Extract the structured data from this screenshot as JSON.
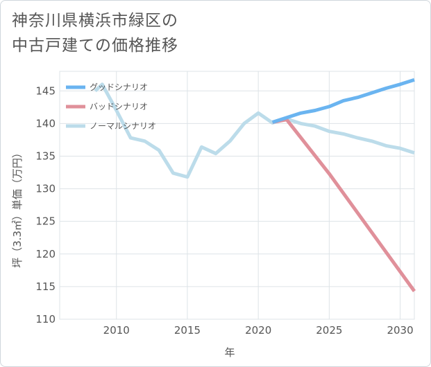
{
  "title": {
    "line1": "神奈川県横浜市緑区の",
    "line2": "中古戸建ての価格推移"
  },
  "chart_data": {
    "type": "line",
    "xlabel": "年",
    "ylabel": "坪（3.3㎡）単価（万円）",
    "xlim": [
      2006,
      2031
    ],
    "ylim": [
      110,
      148
    ],
    "x_ticks": [
      2010,
      2015,
      2020,
      2025,
      2030
    ],
    "y_ticks": [
      110,
      115,
      120,
      125,
      130,
      135,
      140,
      145
    ],
    "grid": true,
    "legend_position": "top-left",
    "series": [
      {
        "name": "グッドシナリオ",
        "color": "#6ab4f0",
        "x": [
          2021,
          2022,
          2023,
          2024,
          2025,
          2026,
          2027,
          2028,
          2029,
          2030,
          2031
        ],
        "values": [
          140.2,
          140.9,
          141.6,
          142.0,
          142.6,
          143.5,
          144.0,
          144.7,
          145.4,
          146.0,
          146.7
        ]
      },
      {
        "name": "バッドシナリオ",
        "color": "#e0909a",
        "x": [
          2021,
          2022,
          2025,
          2031
        ],
        "values": [
          140.2,
          140.6,
          132.3,
          114.3
        ]
      },
      {
        "name": "ノーマルシナリオ",
        "color": "#bcdcea",
        "x": [
          2008.5,
          2009,
          2010,
          2011,
          2012,
          2013,
          2014,
          2015,
          2016,
          2017,
          2018,
          2019,
          2020,
          2021,
          2022,
          2023,
          2024,
          2025,
          2026,
          2027,
          2028,
          2029,
          2030,
          2031
        ],
        "values": [
          145.0,
          146.0,
          142.0,
          137.8,
          137.3,
          135.9,
          132.4,
          131.8,
          136.4,
          135.4,
          137.3,
          140.0,
          141.6,
          140.1,
          140.7,
          140.0,
          139.6,
          138.8,
          138.4,
          137.8,
          137.3,
          136.6,
          136.2,
          135.5
        ]
      }
    ]
  }
}
